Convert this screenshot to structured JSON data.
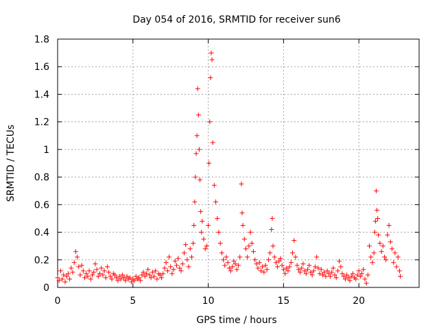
{
  "chart_data": {
    "type": "scatter",
    "title": "Day 054 of 2016, SRMTID for receiver sun6",
    "xlabel": "GPS time / hours",
    "ylabel": "SRMTID / TECUs",
    "xlim": [
      0,
      24
    ],
    "ylim": [
      0,
      1.8
    ],
    "xticks": [
      0,
      5,
      10,
      15,
      20
    ],
    "xtick_labels": [
      "0",
      "5",
      "10",
      "15",
      "20"
    ],
    "yticks": [
      0,
      0.2,
      0.4,
      0.6,
      0.8,
      1,
      1.2,
      1.4,
      1.6,
      1.8
    ],
    "ytick_labels": [
      "0",
      "0.2",
      "0.4",
      "0.6",
      "0.8",
      "1",
      "1.2",
      "1.4",
      "1.6",
      "1.8"
    ],
    "grid": true,
    "marker": "+",
    "series": [
      {
        "name": "SRMTID",
        "color": "#ff0000",
        "points": [
          [
            0.0,
            0.07
          ],
          [
            0.1,
            0.05
          ],
          [
            0.2,
            0.12
          ],
          [
            0.3,
            0.06
          ],
          [
            0.4,
            0.09
          ],
          [
            0.5,
            0.04
          ],
          [
            0.6,
            0.08
          ],
          [
            0.7,
            0.1
          ],
          [
            0.8,
            0.06
          ],
          [
            0.9,
            0.14
          ],
          [
            1.0,
            0.11
          ],
          [
            1.1,
            0.18
          ],
          [
            1.2,
            0.26
          ],
          [
            1.3,
            0.22
          ],
          [
            1.4,
            0.15
          ],
          [
            1.5,
            0.09
          ],
          [
            1.6,
            0.16
          ],
          [
            1.7,
            0.12
          ],
          [
            1.8,
            0.07
          ],
          [
            1.9,
            0.1
          ],
          [
            2.0,
            0.08
          ],
          [
            2.1,
            0.12
          ],
          [
            2.2,
            0.06
          ],
          [
            2.3,
            0.09
          ],
          [
            2.4,
            0.11
          ],
          [
            2.5,
            0.17
          ],
          [
            2.6,
            0.13
          ],
          [
            2.7,
            0.08
          ],
          [
            2.8,
            0.1
          ],
          [
            2.9,
            0.14
          ],
          [
            3.0,
            0.09
          ],
          [
            3.1,
            0.12
          ],
          [
            3.2,
            0.07
          ],
          [
            3.3,
            0.15
          ],
          [
            3.4,
            0.11
          ],
          [
            3.5,
            0.08
          ],
          [
            3.6,
            0.06
          ],
          [
            3.7,
            0.1
          ],
          [
            3.8,
            0.09
          ],
          [
            3.9,
            0.07
          ],
          [
            4.0,
            0.05
          ],
          [
            4.1,
            0.08
          ],
          [
            4.2,
            0.06
          ],
          [
            4.3,
            0.09
          ],
          [
            4.4,
            0.07
          ],
          [
            4.5,
            0.05
          ],
          [
            4.6,
            0.08
          ],
          [
            4.7,
            0.06
          ],
          [
            4.8,
            0.07
          ],
          [
            4.9,
            0.04
          ],
          [
            5.0,
            0.06
          ],
          [
            5.1,
            0.05
          ],
          [
            5.2,
            0.08
          ],
          [
            5.3,
            0.06
          ],
          [
            5.4,
            0.07
          ],
          [
            5.5,
            0.05
          ],
          [
            5.6,
            0.09
          ],
          [
            5.7,
            0.11
          ],
          [
            5.8,
            0.08
          ],
          [
            5.9,
            0.1
          ],
          [
            6.0,
            0.13
          ],
          [
            6.1,
            0.09
          ],
          [
            6.2,
            0.07
          ],
          [
            6.3,
            0.11
          ],
          [
            6.4,
            0.08
          ],
          [
            6.5,
            0.12
          ],
          [
            6.6,
            0.06
          ],
          [
            6.7,
            0.1
          ],
          [
            6.8,
            0.09
          ],
          [
            6.9,
            0.07
          ],
          [
            7.0,
            0.1
          ],
          [
            7.1,
            0.14
          ],
          [
            7.2,
            0.18
          ],
          [
            7.3,
            0.12
          ],
          [
            7.4,
            0.22
          ],
          [
            7.5,
            0.15
          ],
          [
            7.6,
            0.1
          ],
          [
            7.7,
            0.13
          ],
          [
            7.8,
            0.19
          ],
          [
            7.9,
            0.16
          ],
          [
            8.0,
            0.21
          ],
          [
            8.1,
            0.14
          ],
          [
            8.2,
            0.12
          ],
          [
            8.3,
            0.17
          ],
          [
            8.4,
            0.25
          ],
          [
            8.5,
            0.31
          ],
          [
            8.6,
            0.2
          ],
          [
            8.7,
            0.15
          ],
          [
            8.8,
            0.28
          ],
          [
            8.9,
            0.22
          ],
          [
            9.0,
            0.32
          ],
          [
            9.05,
            0.45
          ],
          [
            9.1,
            0.62
          ],
          [
            9.15,
            0.8
          ],
          [
            9.2,
            0.97
          ],
          [
            9.25,
            1.1
          ],
          [
            9.3,
            1.44
          ],
          [
            9.35,
            1.25
          ],
          [
            9.4,
            1.0
          ],
          [
            9.45,
            0.78
          ],
          [
            9.5,
            0.55
          ],
          [
            9.55,
            0.4
          ],
          [
            9.6,
            0.48
          ],
          [
            9.7,
            0.35
          ],
          [
            9.8,
            0.28
          ],
          [
            9.9,
            0.3
          ],
          [
            10.0,
            0.45
          ],
          [
            10.05,
            0.9
          ],
          [
            10.1,
            1.2
          ],
          [
            10.15,
            1.52
          ],
          [
            10.2,
            1.7
          ],
          [
            10.25,
            1.65
          ],
          [
            10.3,
            1.05
          ],
          [
            10.4,
            0.74
          ],
          [
            10.5,
            0.62
          ],
          [
            10.6,
            0.5
          ],
          [
            10.7,
            0.4
          ],
          [
            10.8,
            0.32
          ],
          [
            10.9,
            0.25
          ],
          [
            11.0,
            0.2
          ],
          [
            11.1,
            0.16
          ],
          [
            11.2,
            0.22
          ],
          [
            11.3,
            0.18
          ],
          [
            11.4,
            0.14
          ],
          [
            11.5,
            0.12
          ],
          [
            11.6,
            0.15
          ],
          [
            11.7,
            0.19
          ],
          [
            11.8,
            0.17
          ],
          [
            11.9,
            0.13
          ],
          [
            12.0,
            0.16
          ],
          [
            12.1,
            0.22
          ],
          [
            12.2,
            0.75
          ],
          [
            12.25,
            0.54
          ],
          [
            12.3,
            0.45
          ],
          [
            12.4,
            0.35
          ],
          [
            12.5,
            0.28
          ],
          [
            12.6,
            0.22
          ],
          [
            12.7,
            0.3
          ],
          [
            12.8,
            0.4
          ],
          [
            12.9,
            0.32
          ],
          [
            13.0,
            0.26
          ],
          [
            13.1,
            0.2
          ],
          [
            13.2,
            0.17
          ],
          [
            13.3,
            0.14
          ],
          [
            13.4,
            0.18
          ],
          [
            13.5,
            0.12
          ],
          [
            13.6,
            0.15
          ],
          [
            13.7,
            0.11
          ],
          [
            13.8,
            0.16
          ],
          [
            13.9,
            0.13
          ],
          [
            14.0,
            0.2
          ],
          [
            14.1,
            0.25
          ],
          [
            14.2,
            0.42
          ],
          [
            14.25,
            0.5
          ],
          [
            14.3,
            0.3
          ],
          [
            14.4,
            0.22
          ],
          [
            14.5,
            0.18
          ],
          [
            14.6,
            0.15
          ],
          [
            14.7,
            0.19
          ],
          [
            14.8,
            0.21
          ],
          [
            14.9,
            0.16
          ],
          [
            15.0,
            0.13
          ],
          [
            15.1,
            0.1
          ],
          [
            15.2,
            0.14
          ],
          [
            15.3,
            0.12
          ],
          [
            15.4,
            0.15
          ],
          [
            15.5,
            0.18
          ],
          [
            15.6,
            0.25
          ],
          [
            15.7,
            0.34
          ],
          [
            15.8,
            0.22
          ],
          [
            15.9,
            0.16
          ],
          [
            16.0,
            0.13
          ],
          [
            16.1,
            0.11
          ],
          [
            16.2,
            0.14
          ],
          [
            16.3,
            0.17
          ],
          [
            16.4,
            0.12
          ],
          [
            16.5,
            0.1
          ],
          [
            16.6,
            0.13
          ],
          [
            16.7,
            0.16
          ],
          [
            16.8,
            0.11
          ],
          [
            16.9,
            0.09
          ],
          [
            17.0,
            0.12
          ],
          [
            17.1,
            0.15
          ],
          [
            17.2,
            0.22
          ],
          [
            17.3,
            0.14
          ],
          [
            17.4,
            0.1
          ],
          [
            17.5,
            0.13
          ],
          [
            17.6,
            0.09
          ],
          [
            17.7,
            0.11
          ],
          [
            17.8,
            0.08
          ],
          [
            17.9,
            0.12
          ],
          [
            18.0,
            0.1
          ],
          [
            18.1,
            0.08
          ],
          [
            18.2,
            0.11
          ],
          [
            18.3,
            0.14
          ],
          [
            18.4,
            0.09
          ],
          [
            18.5,
            0.07
          ],
          [
            18.6,
            0.12
          ],
          [
            18.7,
            0.19
          ],
          [
            18.8,
            0.15
          ],
          [
            18.9,
            0.1
          ],
          [
            19.0,
            0.08
          ],
          [
            19.1,
            0.06
          ],
          [
            19.2,
            0.09
          ],
          [
            19.3,
            0.07
          ],
          [
            19.4,
            0.05
          ],
          [
            19.5,
            0.08
          ],
          [
            19.6,
            0.1
          ],
          [
            19.7,
            0.07
          ],
          [
            19.8,
            0.06
          ],
          [
            19.9,
            0.09
          ],
          [
            20.0,
            0.12
          ],
          [
            20.1,
            0.08
          ],
          [
            20.2,
            0.1
          ],
          [
            20.3,
            0.13
          ],
          [
            20.4,
            0.06
          ],
          [
            20.5,
            0.03
          ],
          [
            20.6,
            0.09
          ],
          [
            20.7,
            0.3
          ],
          [
            20.8,
            0.22
          ],
          [
            20.9,
            0.18
          ],
          [
            21.0,
            0.25
          ],
          [
            21.05,
            0.4
          ],
          [
            21.1,
            0.48
          ],
          [
            21.15,
            0.7
          ],
          [
            21.2,
            0.56
          ],
          [
            21.25,
            0.5
          ],
          [
            21.3,
            0.38
          ],
          [
            21.4,
            0.32
          ],
          [
            21.5,
            0.26
          ],
          [
            21.6,
            0.3
          ],
          [
            21.7,
            0.22
          ],
          [
            21.8,
            0.2
          ],
          [
            21.9,
            0.38
          ],
          [
            22.0,
            0.45
          ],
          [
            22.1,
            0.33
          ],
          [
            22.2,
            0.28
          ],
          [
            22.3,
            0.18
          ],
          [
            22.4,
            0.25
          ],
          [
            22.5,
            0.15
          ],
          [
            22.6,
            0.22
          ],
          [
            22.7,
            0.12
          ],
          [
            22.75,
            0.08
          ]
        ]
      }
    ]
  }
}
